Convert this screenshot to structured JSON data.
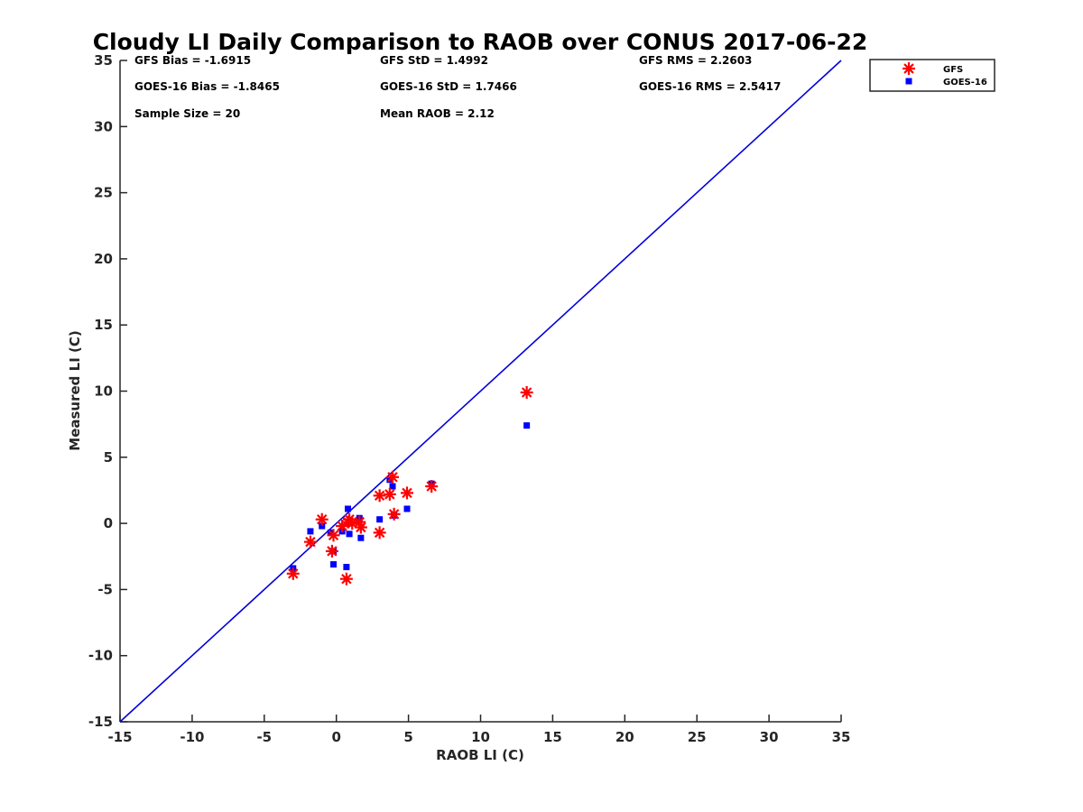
{
  "chart_data": {
    "type": "scatter",
    "title": "Cloudy LI Daily Comparison to RAOB over CONUS 2017-06-22",
    "xlabel": "RAOB LI (C)",
    "ylabel": "Measured LI (C)",
    "xlim": [
      -15,
      35
    ],
    "ylim": [
      -15,
      35
    ],
    "xticks": [
      -15,
      -10,
      -5,
      0,
      5,
      10,
      15,
      20,
      25,
      30,
      35
    ],
    "yticks": [
      -15,
      -10,
      -5,
      0,
      5,
      10,
      15,
      20,
      25,
      30,
      35
    ],
    "grid": false,
    "legend_position": "outside-top-right",
    "reference_line": {
      "from": [
        -15,
        -15
      ],
      "to": [
        35,
        35
      ],
      "color": "#0000dd"
    },
    "stats": [
      {
        "text": "GFS Bias = -1.6915",
        "col": 0,
        "row": 0
      },
      {
        "text": "GFS StD = 1.4992",
        "col": 1,
        "row": 0
      },
      {
        "text": "GFS RMS = 2.2603",
        "col": 2,
        "row": 0
      },
      {
        "text": "GOES-16 Bias = -1.8465",
        "col": 0,
        "row": 1
      },
      {
        "text": "GOES-16 StD = 1.7466",
        "col": 1,
        "row": 1
      },
      {
        "text": "GOES-16 RMS = 2.5417",
        "col": 2,
        "row": 1
      },
      {
        "text": "Sample Size = 20",
        "col": 0,
        "row": 2
      },
      {
        "text": "Mean RAOB = 2.12",
        "col": 1,
        "row": 2
      }
    ],
    "series": [
      {
        "name": "GFS",
        "marker": "asterisk",
        "color": "#ff0000",
        "x": [
          -3.0,
          -1.8,
          -1.0,
          -0.2,
          -0.3,
          0.4,
          0.7,
          0.9,
          1.1,
          1.7,
          3.0,
          3.0,
          3.7,
          3.9,
          4.0,
          4.9,
          6.6,
          13.2,
          0.8,
          1.6
        ],
        "y": [
          -3.8,
          -1.4,
          0.3,
          -0.9,
          -2.1,
          -0.2,
          -4.2,
          0.3,
          0.0,
          -0.3,
          2.1,
          -0.7,
          2.2,
          3.5,
          0.7,
          2.3,
          2.8,
          9.9,
          0.1,
          0.1
        ]
      },
      {
        "name": "GOES-16",
        "marker": "square",
        "color": "#0000ff",
        "x": [
          -3.0,
          -1.8,
          -1.0,
          -0.4,
          -0.2,
          -0.2,
          0.4,
          0.7,
          0.8,
          0.9,
          1.6,
          1.7,
          3.0,
          3.7,
          3.9,
          4.0,
          4.9,
          6.6,
          13.2,
          0.9
        ],
        "y": [
          -3.4,
          -0.6,
          -0.2,
          -0.7,
          -2.1,
          -3.1,
          -0.6,
          -3.3,
          1.1,
          -0.8,
          0.4,
          -1.1,
          0.3,
          3.3,
          2.8,
          0.6,
          1.1,
          3.0,
          7.4,
          0.0
        ]
      }
    ]
  }
}
